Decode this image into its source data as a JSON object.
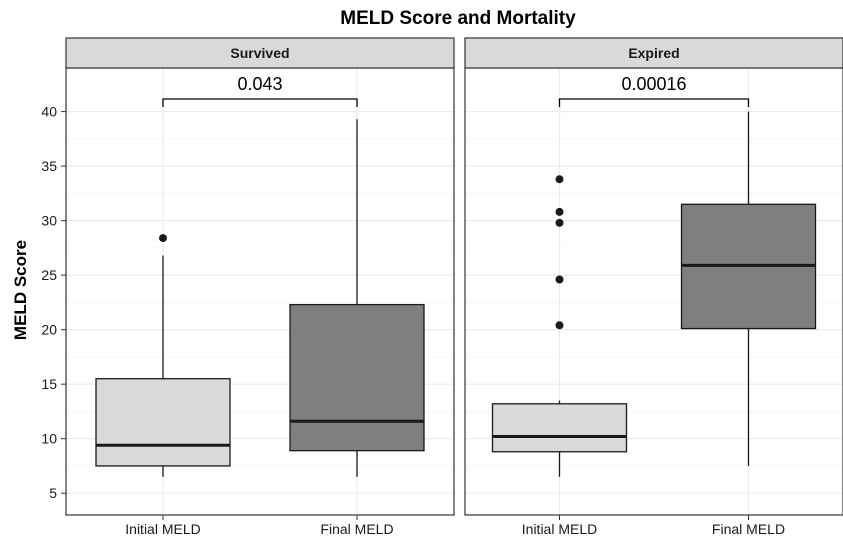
{
  "chart_data": {
    "type": "boxplot",
    "title": "MELD Score and Mortality",
    "ylabel": "MELD Score",
    "xlabel": "",
    "ylim": [
      3,
      44
    ],
    "yticks": [
      5,
      10,
      15,
      20,
      25,
      30,
      35,
      40
    ],
    "categories": [
      "Initial MELD",
      "Final MELD"
    ],
    "grid": true,
    "colors": {
      "Initial MELD": "#d9d9d9",
      "Final MELD": "#7f7f7f"
    },
    "panels": [
      {
        "name": "Survived",
        "p_value": "0.043",
        "boxes": [
          {
            "category": "Initial MELD",
            "min": 6.5,
            "q1": 7.5,
            "median": 9.4,
            "q3": 15.5,
            "max": 26.8,
            "outliers": [
              28.4
            ]
          },
          {
            "category": "Final MELD",
            "min": 6.5,
            "q1": 8.9,
            "median": 11.6,
            "q3": 22.3,
            "max": 39.3,
            "outliers": []
          }
        ]
      },
      {
        "name": "Expired",
        "p_value": "0.00016",
        "boxes": [
          {
            "category": "Initial MELD",
            "min": 6.5,
            "q1": 8.8,
            "median": 10.2,
            "q3": 13.2,
            "max": 13.5,
            "outliers": [
              20.4,
              24.6,
              29.8,
              30.8,
              33.8
            ]
          },
          {
            "category": "Final MELD",
            "min": 7.5,
            "q1": 20.1,
            "median": 25.9,
            "q3": 31.5,
            "max": 40.0,
            "outliers": []
          }
        ]
      }
    ]
  }
}
